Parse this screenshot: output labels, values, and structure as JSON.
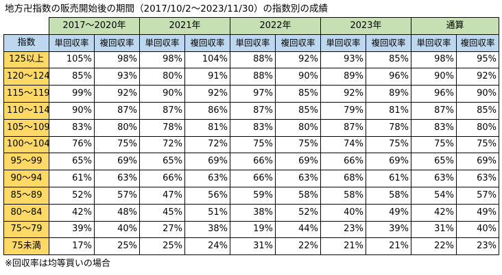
{
  "title": "地方卍指数の販売開始後の期間（2017/10/2～2023/11/30）の指数別の成績",
  "index_header": "指数",
  "periods": [
    "2017～2020年",
    "2021年",
    "2022年",
    "2023年",
    "通算"
  ],
  "sub_headers": [
    "単回収率",
    "複回収率"
  ],
  "rows": [
    {
      "index": "125以上",
      "values": [
        "105%",
        "98%",
        "98%",
        "104%",
        "88%",
        "92%",
        "93%",
        "85%",
        "98%",
        "95%"
      ]
    },
    {
      "index": "120～124",
      "values": [
        "85%",
        "93%",
        "80%",
        "91%",
        "88%",
        "90%",
        "89%",
        "96%",
        "90%",
        "92%"
      ]
    },
    {
      "index": "115～119",
      "values": [
        "99%",
        "92%",
        "90%",
        "92%",
        "97%",
        "85%",
        "92%",
        "89%",
        "96%",
        "90%"
      ]
    },
    {
      "index": "110～114",
      "values": [
        "90%",
        "87%",
        "87%",
        "86%",
        "87%",
        "85%",
        "79%",
        "81%",
        "87%",
        "85%"
      ]
    },
    {
      "index": "105～109",
      "values": [
        "83%",
        "80%",
        "78%",
        "81%",
        "83%",
        "80%",
        "87%",
        "78%",
        "83%",
        "80%"
      ]
    },
    {
      "index": "100～104",
      "values": [
        "76%",
        "75%",
        "72%",
        "72%",
        "75%",
        "75%",
        "74%",
        "75%",
        "75%",
        "75%"
      ]
    },
    {
      "index": "95～99",
      "values": [
        "65%",
        "69%",
        "65%",
        "69%",
        "66%",
        "69%",
        "66%",
        "69%",
        "65%",
        "69%"
      ]
    },
    {
      "index": "90～94",
      "values": [
        "61%",
        "63%",
        "66%",
        "63%",
        "66%",
        "63%",
        "68%",
        "61%",
        "63%",
        "63%"
      ]
    },
    {
      "index": "85～89",
      "values": [
        "52%",
        "57%",
        "47%",
        "56%",
        "59%",
        "58%",
        "58%",
        "58%",
        "54%",
        "57%"
      ]
    },
    {
      "index": "80～84",
      "values": [
        "42%",
        "48%",
        "45%",
        "51%",
        "38%",
        "52%",
        "40%",
        "49%",
        "42%",
        "49%"
      ]
    },
    {
      "index": "75～79",
      "values": [
        "39%",
        "40%",
        "27%",
        "38%",
        "19%",
        "44%",
        "23%",
        "39%",
        "31%",
        "40%"
      ]
    },
    {
      "index": "75未満",
      "values": [
        "17%",
        "25%",
        "25%",
        "24%",
        "31%",
        "22%",
        "21%",
        "21%",
        "22%",
        "23%"
      ]
    }
  ],
  "note": "※回収率は均等買いの場合"
}
